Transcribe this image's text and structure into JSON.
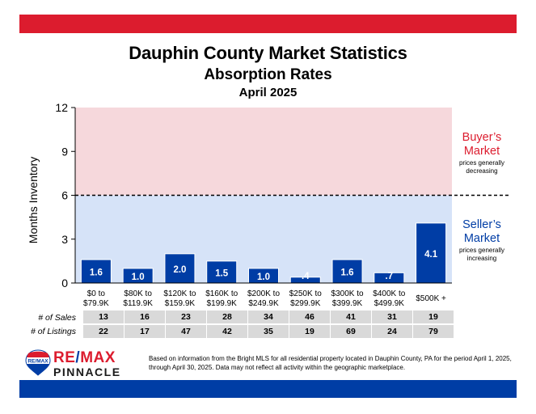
{
  "colors": {
    "red": "#dc1c2e",
    "blue": "#003da5",
    "bar": "#003da5"
  },
  "header": {
    "title": "Dauphin County Market Statistics",
    "subtitle": "Absorption Rates",
    "period": "April 2025"
  },
  "chart_data": {
    "type": "bar",
    "ylabel": "Months Inventory",
    "ylim": [
      0,
      12
    ],
    "yticks": [
      "0",
      "3",
      "6",
      "9",
      "12"
    ],
    "categories": [
      [
        "$0 to",
        "$79.9K"
      ],
      [
        "$80K to",
        "$119.9K"
      ],
      [
        "$120K to",
        "$159.9K"
      ],
      [
        "$160K to",
        "$199.9K"
      ],
      [
        "$200K to",
        "$249.9K"
      ],
      [
        "$250K to",
        "$299.9K"
      ],
      [
        "$300K to",
        "$399.9K"
      ],
      [
        "$400K to",
        "$499.9K"
      ],
      [
        "$500K +"
      ]
    ],
    "values": [
      1.6,
      1.0,
      2.0,
      1.5,
      1.0,
      0.4,
      1.6,
      0.7,
      4.1
    ],
    "value_labels": [
      "1.6",
      "1.0",
      "2.0",
      "1.5",
      "1.0",
      ".4",
      "1.6",
      ".7",
      "4.1"
    ],
    "threshold": 6,
    "buyers_zone": {
      "range": [
        6,
        12
      ],
      "title_lines": [
        "Buyer’s",
        "Market"
      ],
      "note_lines": [
        "prices generally",
        "decreasing"
      ],
      "color": "#f6d8dc"
    },
    "sellers_zone": {
      "range": [
        0,
        6
      ],
      "title_lines": [
        "Seller’s",
        "Market"
      ],
      "note_lines": [
        "prices generally",
        "increasing"
      ],
      "color": "#d6e3f8"
    }
  },
  "table": {
    "sales_label": "# of Sales",
    "listings_label": "# of Listings",
    "sales": [
      "13",
      "16",
      "23",
      "28",
      "34",
      "46",
      "41",
      "31",
      "19"
    ],
    "listings": [
      "22",
      "17",
      "47",
      "42",
      "35",
      "19",
      "69",
      "24",
      "79"
    ]
  },
  "footer": {
    "brand_name_1": "RE",
    "brand_slash": "/",
    "brand_name_2": "MAX",
    "brand_sub": "PINNACLE",
    "logo_text": "RE/MAX",
    "source_text": "Based on information from the Bright MLS for all residential property located in Dauphin County, PA for the period April 1, 2025, through April 30, 2025.  Data may not reflect all activity within the geographic marketplace."
  }
}
